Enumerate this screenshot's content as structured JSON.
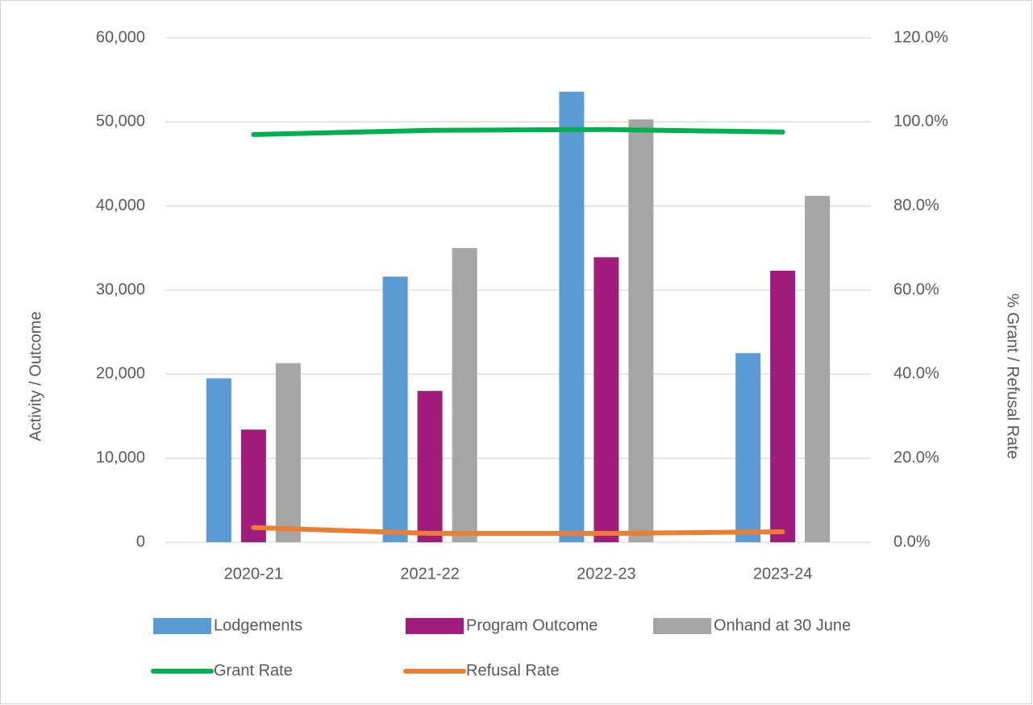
{
  "chart_data": {
    "type": "bar",
    "categories": [
      "2020-21",
      "2021-22",
      "2022-23",
      "2023-24"
    ],
    "series": [
      {
        "name": "Lodgements",
        "color": "#5b9bd5",
        "type": "bar",
        "values": [
          19500,
          31600,
          53600,
          22500
        ]
      },
      {
        "name": "Program Outcome",
        "color": "#a21c7e",
        "type": "bar",
        "values": [
          13400,
          18000,
          33900,
          32300
        ]
      },
      {
        "name": "Onhand at 30 June",
        "color": "#a5a5a5",
        "type": "bar",
        "values": [
          21300,
          35000,
          50300,
          41200
        ]
      },
      {
        "name": "Grant Rate",
        "color": "#00b050",
        "type": "line",
        "axis": "y2",
        "values": [
          97.0,
          98.0,
          98.2,
          97.6
        ]
      },
      {
        "name": "Refusal Rate",
        "color": "#ed7d31",
        "type": "line",
        "axis": "y2",
        "values": [
          3.5,
          2.1,
          2.1,
          2.5
        ]
      }
    ],
    "ylabel": "Activity / Outcome",
    "y2label": "% Grant / Refusal Rate",
    "ylim": [
      0,
      60000
    ],
    "yticks": [
      {
        "value": 0,
        "label": "0"
      },
      {
        "value": 10000,
        "label": "10,000"
      },
      {
        "value": 20000,
        "label": "20,000"
      },
      {
        "value": 30000,
        "label": "30,000"
      },
      {
        "value": 40000,
        "label": "40,000"
      },
      {
        "value": 50000,
        "label": "50,000"
      },
      {
        "value": 60000,
        "label": "60,000"
      }
    ],
    "y2lim": [
      0,
      120
    ],
    "y2ticks": [
      {
        "value": 0,
        "label": "0.0%"
      },
      {
        "value": 20,
        "label": "20.0%"
      },
      {
        "value": 40,
        "label": "40.0%"
      },
      {
        "value": 60,
        "label": "60.0%"
      },
      {
        "value": 80,
        "label": "80.0%"
      },
      {
        "value": 100,
        "label": "100.0%"
      },
      {
        "value": 120,
        "label": "120.0%"
      }
    ],
    "grid": true,
    "legend": "bottom"
  }
}
